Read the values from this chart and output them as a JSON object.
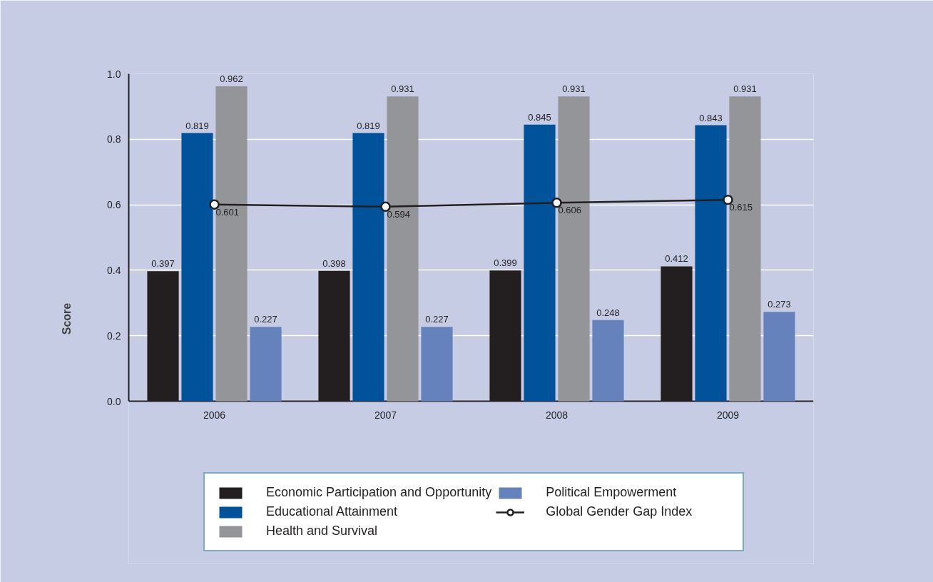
{
  "chart_data": {
    "type": "bar",
    "ylabel": "Score",
    "categories": [
      "2006",
      "2007",
      "2008",
      "2009"
    ],
    "series": [
      {
        "name": "Economic Participation and Opportunity",
        "color": "#231f20",
        "values": [
          0.397,
          0.398,
          0.399,
          0.412
        ]
      },
      {
        "name": "Educational Attainment",
        "color": "#00529b",
        "values": [
          0.819,
          0.819,
          0.845,
          0.843
        ]
      },
      {
        "name": "Health and Survival",
        "color": "#939598",
        "values": [
          0.962,
          0.931,
          0.931,
          0.931
        ]
      },
      {
        "name": "Political Empowerment",
        "color": "#6682bd",
        "values": [
          0.227,
          0.227,
          0.248,
          0.273
        ]
      },
      {
        "name": "Global Gender Gap Index",
        "type": "line",
        "color": "#231f20",
        "marker": "circle",
        "values": [
          0.601,
          0.594,
          0.606,
          0.615
        ]
      }
    ],
    "ylim": [
      0,
      1.0
    ],
    "yticks": [
      {
        "value": 0,
        "label": "0.0"
      },
      {
        "value": 0.2,
        "label": "0.2"
      },
      {
        "value": 0.4,
        "label": "0.4"
      },
      {
        "value": 0.6,
        "label": "0.6"
      },
      {
        "value": 0.8,
        "label": "0.8"
      },
      {
        "value": 1.0,
        "label": "1.0"
      }
    ],
    "grid": "y",
    "legend": "bottom",
    "data_labels": true
  }
}
